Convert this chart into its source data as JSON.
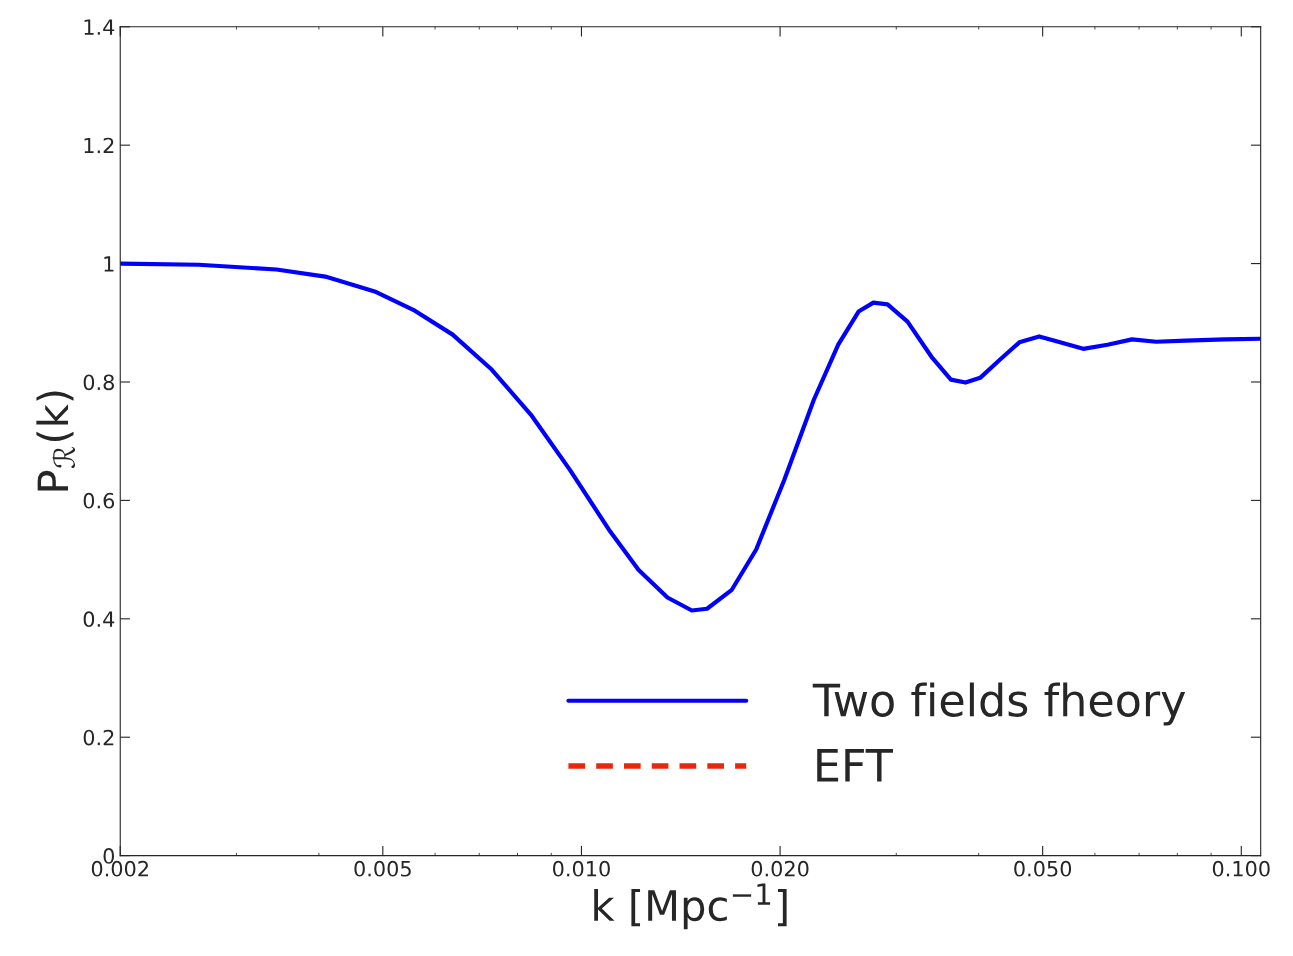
{
  "chart_data": {
    "type": "line",
    "xlabel": "k [Mpc$^{−1}$]",
    "ylabel": "P$_{ℛ}$(k)",
    "log": "x",
    "xlim": [
      0.002,
      0.107
    ],
    "ylim": [
      0,
      1.4
    ],
    "xticks": [
      {
        "value": 0.002,
        "label": "0.002"
      },
      {
        "value": 0.005,
        "label": "0.005"
      },
      {
        "value": 0.01,
        "label": "0.010"
      },
      {
        "value": 0.02,
        "label": "0.020"
      },
      {
        "value": 0.05,
        "label": "0.050"
      },
      {
        "value": 0.1,
        "label": "0.100"
      }
    ],
    "yticks": [
      0,
      0.2,
      0.4,
      0.6,
      0.8,
      1,
      1.2,
      1.4
    ],
    "grid": false,
    "legend": "bottom right",
    "x": [
      0.002,
      0.00263,
      0.00345,
      0.00409,
      0.00486,
      0.00556,
      0.00638,
      0.00731,
      0.00838,
      0.0096,
      0.011,
      0.0122,
      0.0135,
      0.0147,
      0.0155,
      0.0169,
      0.0184,
      0.0203,
      0.0225,
      0.0245,
      0.0263,
      0.0277,
      0.0291,
      0.0312,
      0.034,
      0.0363,
      0.0382,
      0.0402,
      0.0431,
      0.0461,
      0.0494,
      0.0528,
      0.0576,
      0.0627,
      0.0683,
      0.0743,
      0.0824,
      0.0944,
      0.107
    ],
    "series": [
      {
        "name": "Two fields fheory",
        "color": "#0000ff",
        "line_style": "solid",
        "values": [
          1.0,
          0.998,
          0.99,
          0.978,
          0.953,
          0.922,
          0.88,
          0.821,
          0.745,
          0.652,
          0.551,
          0.483,
          0.436,
          0.414,
          0.417,
          0.449,
          0.517,
          0.635,
          0.77,
          0.863,
          0.919,
          0.934,
          0.931,
          0.902,
          0.841,
          0.804,
          0.799,
          0.807,
          0.838,
          0.867,
          0.877,
          0.868,
          0.856,
          0.863,
          0.872,
          0.868,
          0.87,
          0.872,
          0.873
        ]
      },
      {
        "name": "EFT",
        "color": "#e8280c",
        "line_style": "dashed",
        "values": [
          null,
          null,
          null,
          null,
          null,
          null,
          null,
          null,
          null,
          null,
          null,
          null,
          null,
          null,
          null,
          null,
          null,
          null,
          null,
          null,
          null,
          null,
          null,
          null,
          null,
          null,
          null,
          null,
          null,
          null,
          null,
          null,
          null,
          null,
          null,
          null,
          null,
          null,
          null
        ]
      }
    ]
  }
}
